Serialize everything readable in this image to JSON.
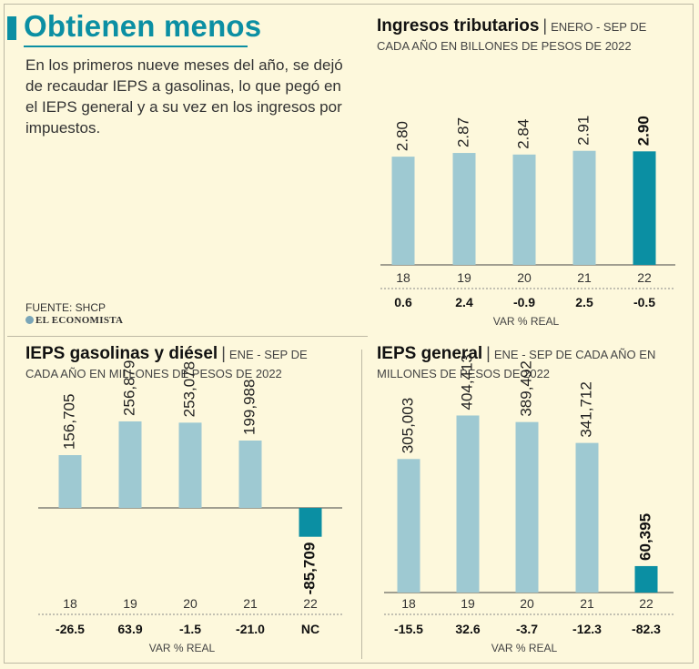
{
  "header": {
    "title": "Obtienen menos",
    "intro": "En los primeros nueve meses del año, se dejó de recaudar IEPS a gasolinas, lo que pegó en el IEPS general y a su vez en los ingresos por impuestos.",
    "source": "FUENTE: SHCP",
    "brand": "EL ECONOMISTA"
  },
  "colors": {
    "bar": "#9ec9d2",
    "bar_highlight": "#0b8fa3",
    "title": "#0b8fa3"
  },
  "chart_data": [
    {
      "id": "ingresos",
      "type": "bar",
      "title": "Ingresos tributarios",
      "subtitle": "ENERO - SEP DE CADA AÑO EN BILLONES DE PESOS DE 2022",
      "categories": [
        "18",
        "19",
        "20",
        "21",
        "22"
      ],
      "values": [
        2.8,
        2.87,
        2.84,
        2.91,
        2.9
      ],
      "labels": [
        "2.80",
        "2.87",
        "2.84",
        "2.91",
        "2.90"
      ],
      "var_real": [
        "0.6",
        "2.4",
        "-0.9",
        "2.5",
        "-0.5"
      ],
      "var_label": "VAR % REAL",
      "highlight_index": 4
    },
    {
      "id": "gasolinas",
      "type": "bar",
      "title": "IEPS gasolinas y diésel",
      "subtitle": "ENE - SEP DE CADA AÑO EN MILLONES DE PESOS DE 2022",
      "categories": [
        "18",
        "19",
        "20",
        "21",
        "22"
      ],
      "values": [
        156705,
        256879,
        253078,
        199988,
        -85709
      ],
      "labels": [
        "156,705",
        "256,879",
        "253,078",
        "199,988",
        "-85,709"
      ],
      "var_real": [
        "-26.5",
        "63.9",
        "-1.5",
        "-21.0",
        "NC"
      ],
      "var_label": "VAR % REAL",
      "highlight_index": 4
    },
    {
      "id": "general",
      "type": "bar",
      "title": "IEPS general",
      "subtitle": "ENE - SEP DE CADA AÑO EN MILLONES DE PESOS DE 2022",
      "categories": [
        "18",
        "19",
        "20",
        "21",
        "22"
      ],
      "values": [
        305003,
        404413,
        389492,
        341712,
        60395
      ],
      "labels": [
        "305,003",
        "404,413",
        "389,492",
        "341,712",
        "60,395"
      ],
      "var_real": [
        "-15.5",
        "32.6",
        "-3.7",
        "-12.3",
        "-82.3"
      ],
      "var_label": "VAR % REAL",
      "highlight_index": 4
    }
  ]
}
